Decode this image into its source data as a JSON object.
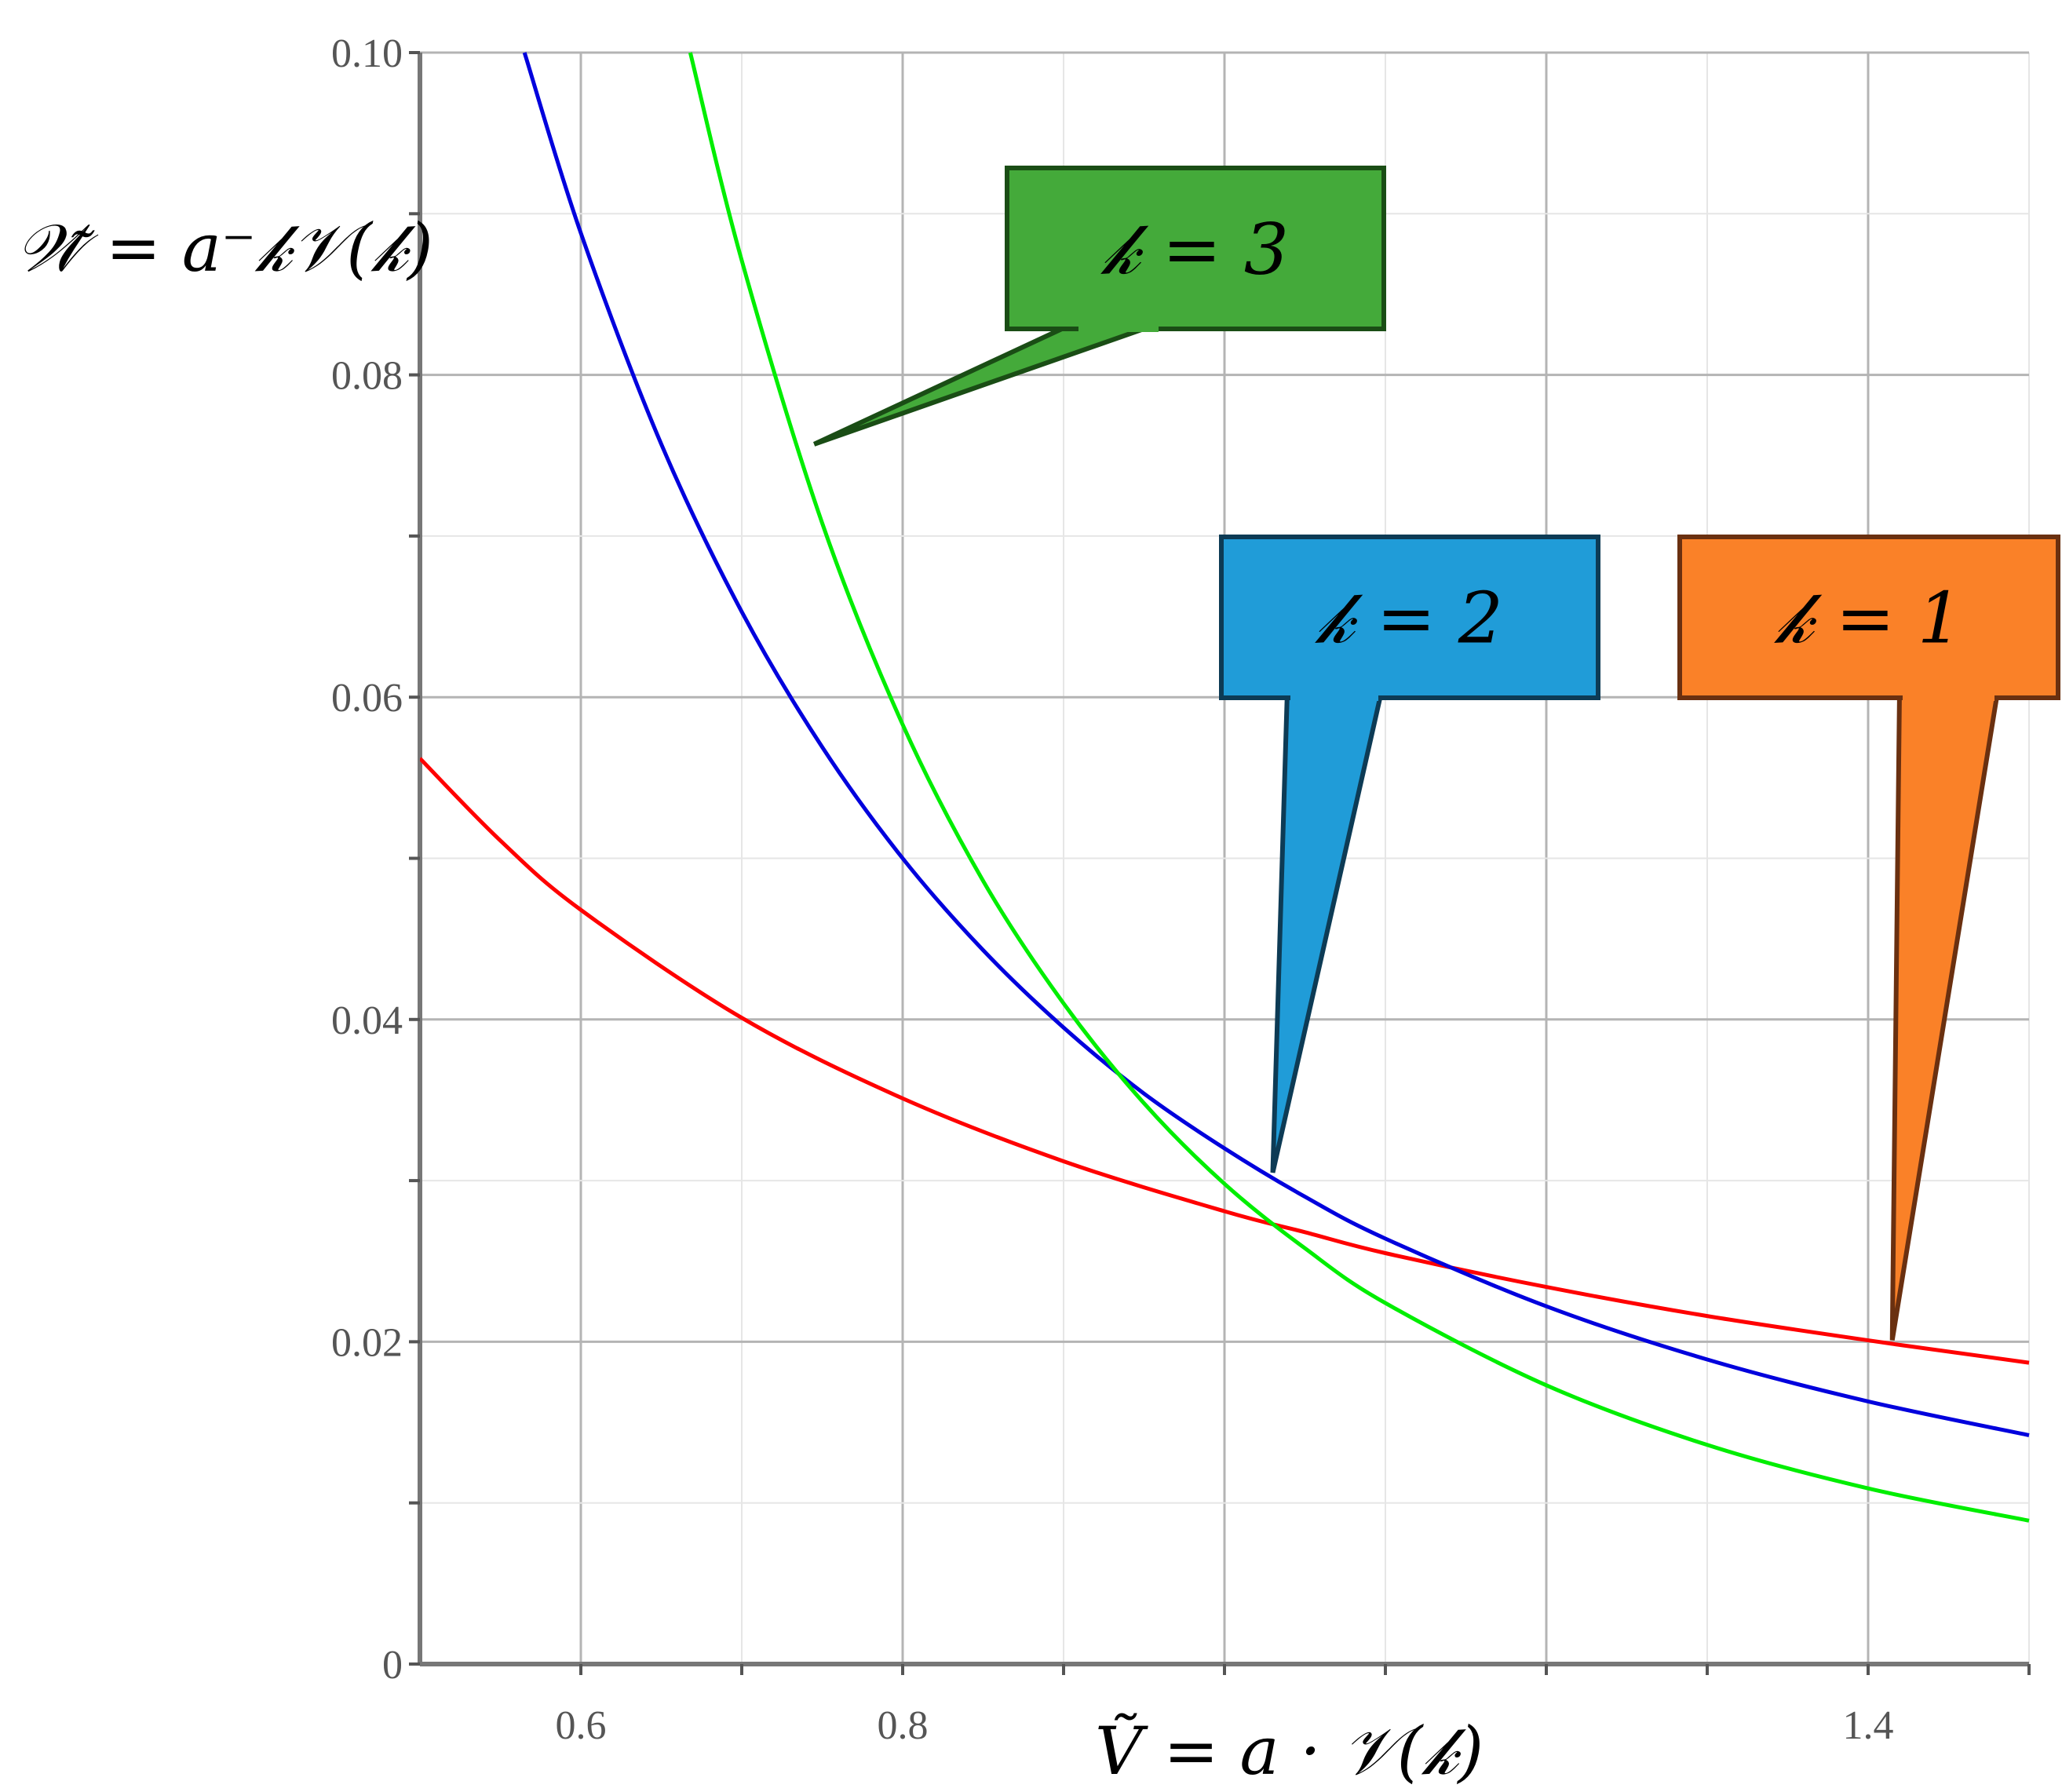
{
  "chart_data": {
    "type": "line",
    "title": "",
    "xlabel": "Ṽ = a · 𝒱(𝓀)",
    "ylabel": "𝒲̃ = a⁻𝓀𝒱(𝓀)",
    "xlim": [
      0.5,
      1.5
    ],
    "ylim": [
      0,
      0.1
    ],
    "x_ticks": [
      {
        "value": 0.6,
        "label": "0.6"
      },
      {
        "value": 0.8,
        "label": "0.8"
      },
      {
        "value": 1.4,
        "label": "1.4"
      }
    ],
    "y_ticks": [
      {
        "value": 0,
        "label": "0"
      },
      {
        "value": 0.02,
        "label": "0.02"
      },
      {
        "value": 0.04,
        "label": "0.04"
      },
      {
        "value": 0.06,
        "label": "0.06"
      },
      {
        "value": 0.08,
        "label": "0.08"
      },
      {
        "value": 0.1,
        "label": "0.10"
      }
    ],
    "grid": true,
    "series": [
      {
        "name": "",
        "color": "#ff0000",
        "x": [
          0.5,
          0.55,
          0.6,
          0.7,
          0.8,
          0.9,
          1.0,
          1.05,
          1.1,
          1.2,
          1.3,
          1.42,
          1.5
        ],
        "y": [
          0.0562,
          0.0511,
          0.0468,
          0.0401,
          0.0351,
          0.0312,
          0.0281,
          0.0268,
          0.0255,
          0.0234,
          0.0216,
          0.0198,
          0.0187
        ]
      },
      {
        "name": "",
        "color": "#0000dd",
        "x": [
          0.565,
          0.6,
          0.65,
          0.7,
          0.75,
          0.8,
          0.85,
          0.9,
          0.95,
          1.0,
          1.05,
          1.1,
          1.2,
          1.3,
          1.4,
          1.5
        ],
        "y": [
          0.1,
          0.0888,
          0.0757,
          0.0653,
          0.0569,
          0.05,
          0.0443,
          0.0395,
          0.0354,
          0.032,
          0.029,
          0.0264,
          0.0222,
          0.0189,
          0.0163,
          0.0142
        ]
      },
      {
        "name": "",
        "color": "#00ee00",
        "x": [
          0.668,
          0.7,
          0.75,
          0.8,
          0.85,
          0.9,
          0.95,
          1.0,
          1.05,
          1.1,
          1.2,
          1.3,
          1.4,
          1.5
        ],
        "y": [
          0.1,
          0.0871,
          0.0708,
          0.0583,
          0.0486,
          0.041,
          0.0348,
          0.0298,
          0.0258,
          0.0224,
          0.0173,
          0.0136,
          0.0109,
          0.0089
        ]
      }
    ],
    "annotations": [
      {
        "text": "𝓀 = 3",
        "fill": "#44aa3a",
        "stroke": "#1a4d15",
        "points_to": {
          "x": 0.745,
          "y": 0.0757
        }
      },
      {
        "text": "𝓀 = 2",
        "fill": "#209cd8",
        "stroke": "#0d3b55",
        "points_to": {
          "x": 1.03,
          "y": 0.0305
        }
      },
      {
        "text": "𝓀 = 1",
        "fill": "#fa8128",
        "stroke": "#6a3010",
        "points_to": {
          "x": 1.415,
          "y": 0.0201
        }
      }
    ]
  }
}
